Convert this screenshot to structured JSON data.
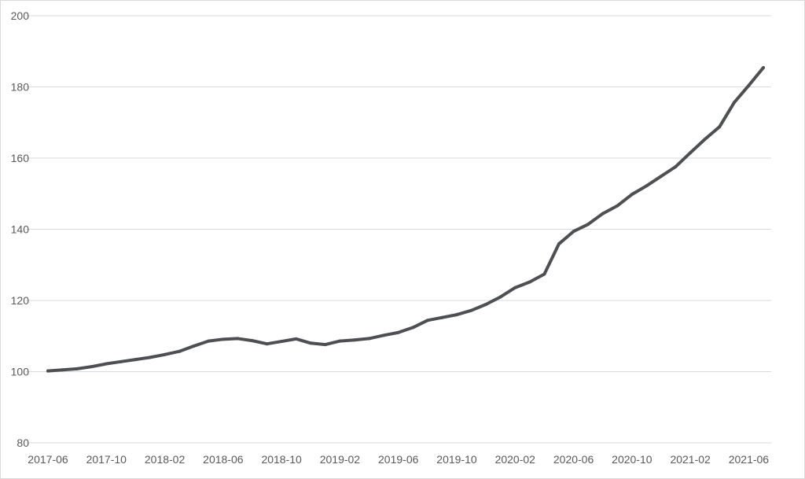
{
  "chart_data": {
    "type": "line",
    "title": "",
    "xlabel": "",
    "ylabel": "",
    "ylim": [
      80,
      200
    ],
    "y_ticks": [
      "80",
      "100",
      "120",
      "140",
      "160",
      "180",
      "200"
    ],
    "x_ticks": [
      "2017-06",
      "2017-10",
      "2018-02",
      "2018-06",
      "2018-10",
      "2019-02",
      "2019-06",
      "2019-10",
      "2020-02",
      "2020-06",
      "2020-10",
      "2021-02",
      "2021-06"
    ],
    "grid": "horizontal",
    "legend": "none",
    "line_color": "#4d4f53",
    "x": [
      "2017-06",
      "2017-07",
      "2017-08",
      "2017-09",
      "2017-10",
      "2017-11",
      "2017-12",
      "2018-01",
      "2018-02",
      "2018-03",
      "2018-04",
      "2018-05",
      "2018-06",
      "2018-07",
      "2018-08",
      "2018-09",
      "2018-10",
      "2018-11",
      "2018-12",
      "2019-01",
      "2019-02",
      "2019-03",
      "2019-04",
      "2019-05",
      "2019-06",
      "2019-07",
      "2019-08",
      "2019-09",
      "2019-10",
      "2019-11",
      "2019-12",
      "2020-01",
      "2020-02",
      "2020-03",
      "2020-04",
      "2020-05",
      "2020-06",
      "2020-07",
      "2020-08",
      "2020-09",
      "2020-10",
      "2020-11",
      "2020-12",
      "2021-01",
      "2021-02",
      "2021-03",
      "2021-04",
      "2021-05",
      "2021-06",
      "2021-07"
    ],
    "series": [
      {
        "values": [
          100.2,
          100.5,
          100.8,
          101.4,
          102.2,
          102.8,
          103.4,
          104.0,
          104.8,
          105.7,
          107.2,
          108.6,
          109.1,
          109.3,
          108.7,
          107.8,
          108.5,
          109.2,
          108.0,
          107.6,
          108.6,
          108.9,
          109.3,
          110.2,
          111.0,
          112.4,
          114.4,
          115.2,
          116.0,
          117.2,
          118.9,
          121.0,
          123.6,
          125.2,
          127.4,
          135.9,
          139.4,
          141.4,
          144.4,
          146.6,
          149.8,
          152.2,
          154.9,
          157.6,
          161.5,
          165.3,
          168.8,
          175.6,
          180.4,
          185.4
        ]
      }
    ]
  }
}
